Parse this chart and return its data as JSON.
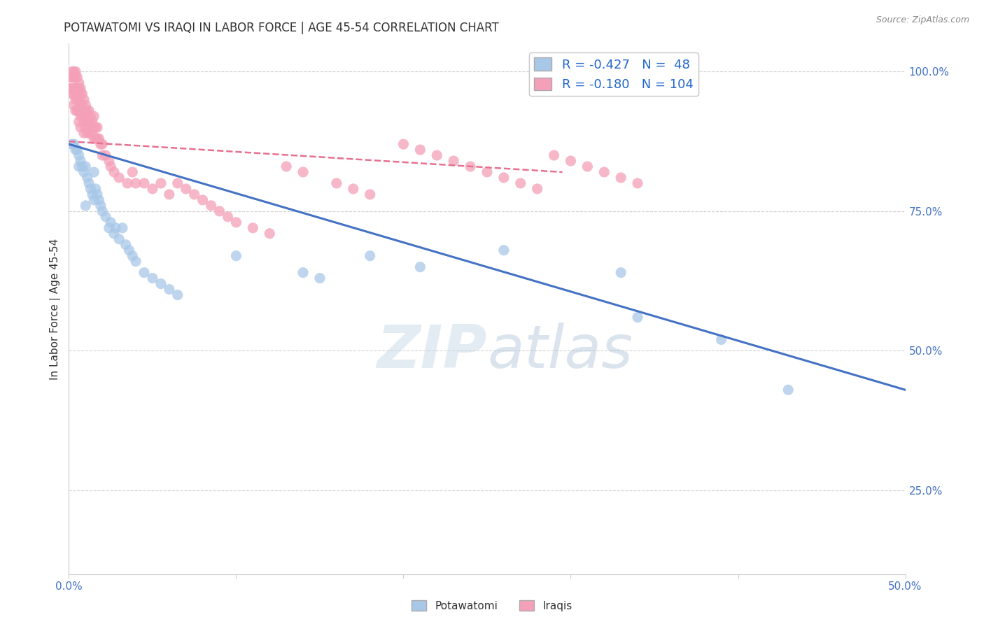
{
  "title": "POTAWATOMI VS IRAQI IN LABOR FORCE | AGE 45-54 CORRELATION CHART",
  "source": "Source: ZipAtlas.com",
  "ylabel": "In Labor Force | Age 45-54",
  "xlim": [
    0.0,
    0.5
  ],
  "ylim": [
    0.1,
    1.05
  ],
  "xticks": [
    0.0,
    0.1,
    0.2,
    0.3,
    0.4,
    0.5
  ],
  "xticklabels": [
    "0.0%",
    "",
    "",
    "",
    "",
    "50.0%"
  ],
  "yticks": [
    0.25,
    0.5,
    0.75,
    1.0
  ],
  "yticklabels": [
    "25.0%",
    "50.0%",
    "75.0%",
    "100.0%"
  ],
  "blue_R": -0.427,
  "blue_N": 48,
  "pink_R": -0.18,
  "pink_N": 104,
  "blue_color": "#a8c8e8",
  "pink_color": "#f4a0b8",
  "blue_line_color": "#4472c4",
  "pink_line_color": "#e87090",
  "legend_label_blue": "Potawatomi",
  "legend_label_pink": "Iraqis",
  "watermark_zip": "ZIP",
  "watermark_atlas": "atlas",
  "blue_trend_x": [
    0.0,
    0.5
  ],
  "blue_trend_y": [
    0.87,
    0.43
  ],
  "pink_trend_x": [
    0.0,
    0.295
  ],
  "pink_trend_y": [
    0.875,
    0.82
  ],
  "background_color": "#ffffff",
  "grid_color": "#cccccc",
  "tick_color": "#4472c4",
  "title_fontsize": 12,
  "axis_label_fontsize": 11,
  "tick_fontsize": 11,
  "blue_scatter_x": [
    0.002,
    0.003,
    0.004,
    0.005,
    0.006,
    0.006,
    0.007,
    0.008,
    0.009,
    0.01,
    0.01,
    0.011,
    0.012,
    0.013,
    0.014,
    0.015,
    0.015,
    0.016,
    0.017,
    0.018,
    0.019,
    0.02,
    0.022,
    0.024,
    0.025,
    0.027,
    0.028,
    0.03,
    0.032,
    0.034,
    0.036,
    0.038,
    0.04,
    0.045,
    0.05,
    0.055,
    0.06,
    0.065,
    0.1,
    0.14,
    0.15,
    0.18,
    0.21,
    0.26,
    0.33,
    0.34,
    0.39,
    0.43
  ],
  "blue_scatter_y": [
    0.87,
    0.87,
    0.86,
    0.86,
    0.85,
    0.83,
    0.84,
    0.83,
    0.82,
    0.83,
    0.76,
    0.81,
    0.8,
    0.79,
    0.78,
    0.82,
    0.77,
    0.79,
    0.78,
    0.77,
    0.76,
    0.75,
    0.74,
    0.72,
    0.73,
    0.71,
    0.72,
    0.7,
    0.72,
    0.69,
    0.68,
    0.67,
    0.66,
    0.64,
    0.63,
    0.62,
    0.61,
    0.6,
    0.67,
    0.64,
    0.63,
    0.67,
    0.65,
    0.68,
    0.64,
    0.56,
    0.52,
    0.43
  ],
  "pink_scatter_x": [
    0.001,
    0.001,
    0.002,
    0.002,
    0.002,
    0.002,
    0.003,
    0.003,
    0.003,
    0.003,
    0.003,
    0.004,
    0.004,
    0.004,
    0.004,
    0.004,
    0.005,
    0.005,
    0.005,
    0.005,
    0.005,
    0.006,
    0.006,
    0.006,
    0.006,
    0.006,
    0.007,
    0.007,
    0.007,
    0.007,
    0.007,
    0.008,
    0.008,
    0.008,
    0.009,
    0.009,
    0.009,
    0.009,
    0.01,
    0.01,
    0.01,
    0.011,
    0.011,
    0.011,
    0.012,
    0.012,
    0.012,
    0.013,
    0.013,
    0.014,
    0.014,
    0.015,
    0.015,
    0.015,
    0.016,
    0.016,
    0.017,
    0.017,
    0.018,
    0.019,
    0.02,
    0.02,
    0.022,
    0.024,
    0.025,
    0.027,
    0.03,
    0.035,
    0.038,
    0.04,
    0.045,
    0.05,
    0.055,
    0.06,
    0.065,
    0.07,
    0.075,
    0.08,
    0.085,
    0.09,
    0.095,
    0.1,
    0.11,
    0.12,
    0.13,
    0.14,
    0.16,
    0.17,
    0.18,
    0.2,
    0.21,
    0.22,
    0.23,
    0.24,
    0.25,
    0.26,
    0.27,
    0.28,
    0.29,
    0.3,
    0.31,
    0.32,
    0.33,
    0.34
  ],
  "pink_scatter_y": [
    0.99,
    0.97,
    1.0,
    0.99,
    0.97,
    0.96,
    1.0,
    0.99,
    0.97,
    0.96,
    0.94,
    1.0,
    0.99,
    0.97,
    0.95,
    0.93,
    0.99,
    0.97,
    0.96,
    0.95,
    0.93,
    0.98,
    0.97,
    0.95,
    0.93,
    0.91,
    0.97,
    0.96,
    0.94,
    0.92,
    0.9,
    0.96,
    0.94,
    0.92,
    0.95,
    0.93,
    0.91,
    0.89,
    0.94,
    0.92,
    0.9,
    0.93,
    0.91,
    0.89,
    0.93,
    0.91,
    0.89,
    0.92,
    0.9,
    0.91,
    0.89,
    0.92,
    0.9,
    0.88,
    0.9,
    0.88,
    0.9,
    0.88,
    0.88,
    0.87,
    0.87,
    0.85,
    0.85,
    0.84,
    0.83,
    0.82,
    0.81,
    0.8,
    0.82,
    0.8,
    0.8,
    0.79,
    0.8,
    0.78,
    0.8,
    0.79,
    0.78,
    0.77,
    0.76,
    0.75,
    0.74,
    0.73,
    0.72,
    0.71,
    0.83,
    0.82,
    0.8,
    0.79,
    0.78,
    0.87,
    0.86,
    0.85,
    0.84,
    0.83,
    0.82,
    0.81,
    0.8,
    0.79,
    0.85,
    0.84,
    0.83,
    0.82,
    0.81,
    0.8
  ]
}
